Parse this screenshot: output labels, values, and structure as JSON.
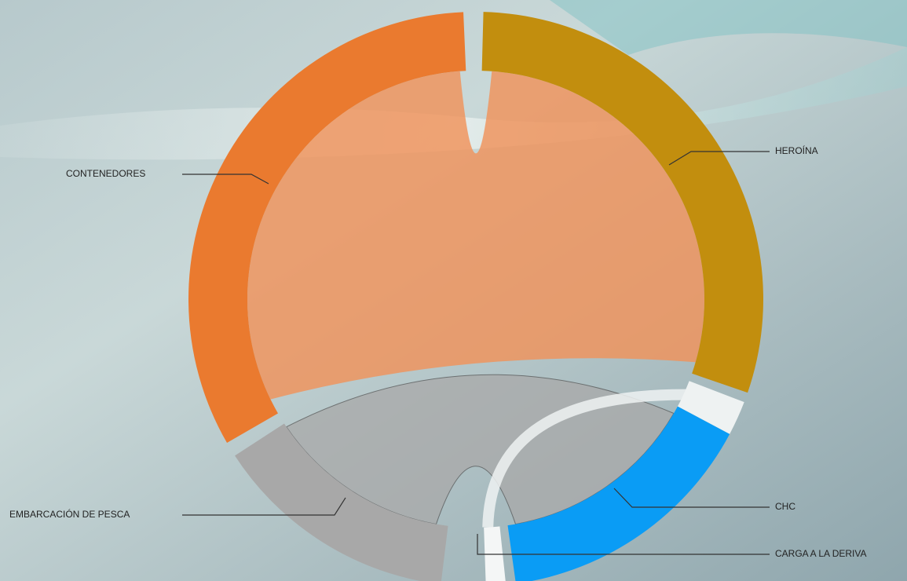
{
  "nodes": [
    {
      "label": "CONTENEDORES"
    },
    {
      "label": "HEROÍNA"
    },
    {
      "label": "EMBARCACIÓN DE PESCA"
    },
    {
      "label": "CHC"
    },
    {
      "label": "CARGA A LA DERIVA"
    }
  ]
}
